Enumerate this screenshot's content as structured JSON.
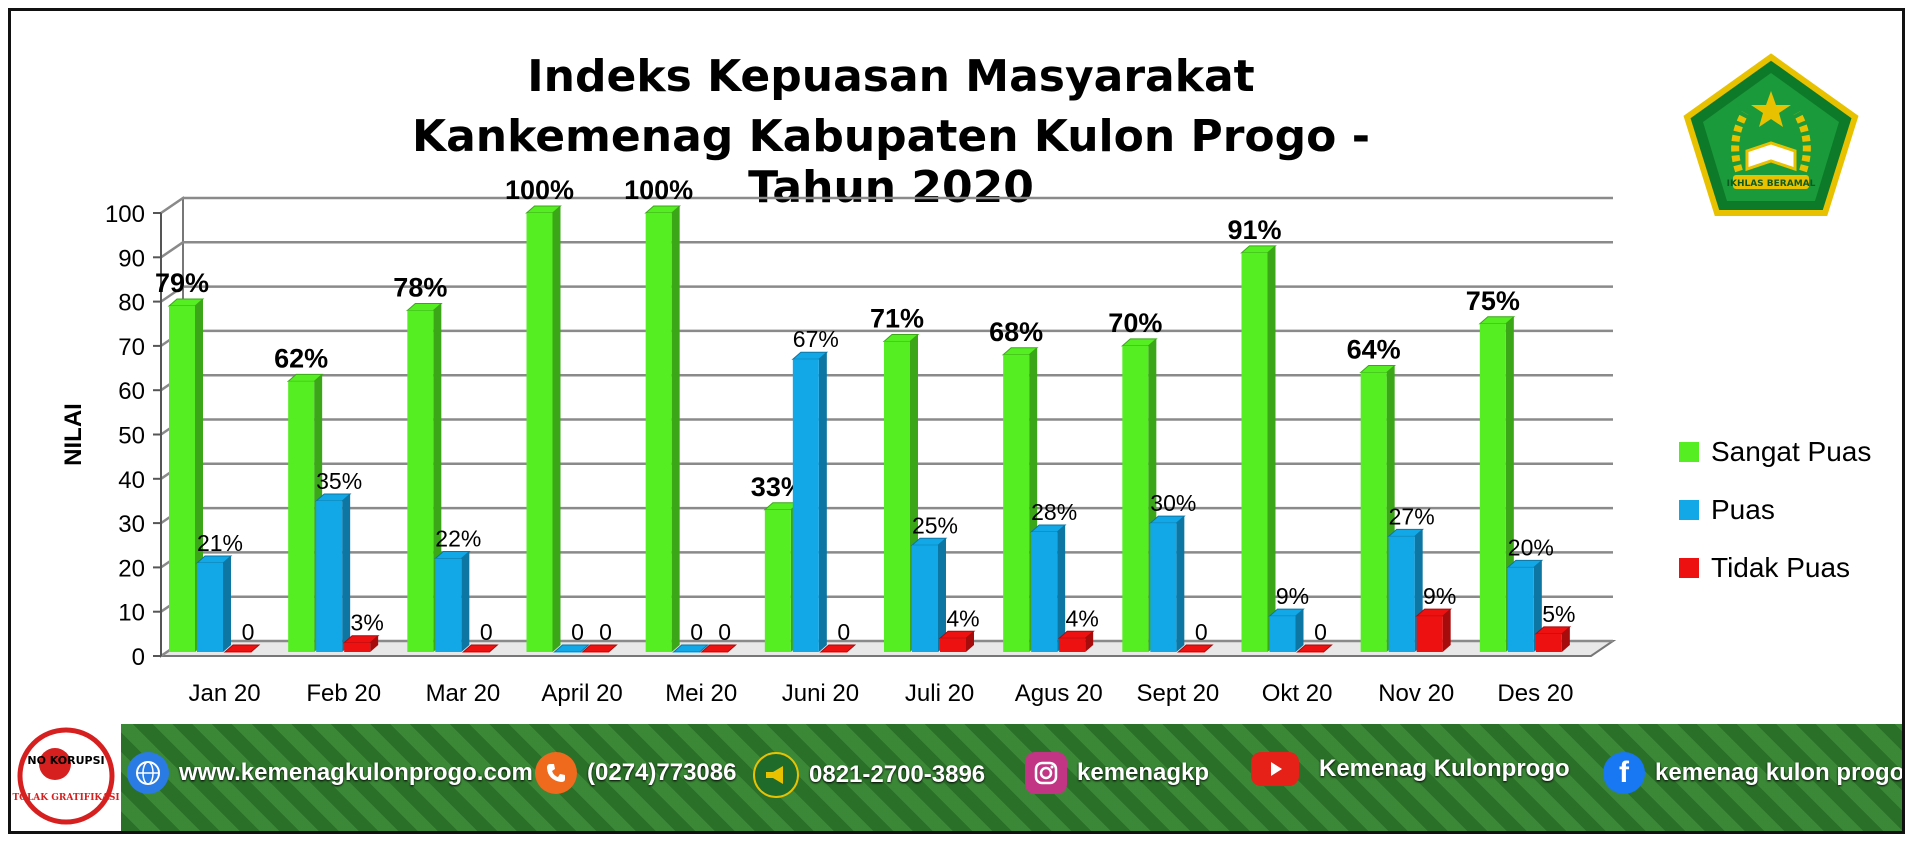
{
  "title_line1": "Indeks Kepuasan Masyarakat",
  "title_line2": "Kankemenag Kabupaten Kulon Progo - Tahun 2020",
  "chart_data": {
    "type": "bar",
    "ylabel": "NILAI",
    "ylim": [
      0,
      100
    ],
    "yticks": [
      "0",
      "10",
      "20",
      "30",
      "40",
      "50",
      "60",
      "70",
      "80",
      "90",
      "100"
    ],
    "categories": [
      "Jan 20",
      "Feb 20",
      "Mar 20",
      "April 20",
      "Mei 20",
      "Juni 20",
      "Juli 20",
      "Agus 20",
      "Sept 20",
      "Okt 20",
      "Nov 20",
      "Des 20"
    ],
    "series": [
      {
        "name": "Sangat Puas",
        "color": "#55ee22",
        "values": [
          79,
          62,
          78,
          100,
          100,
          33,
          71,
          68,
          70,
          91,
          64,
          75
        ],
        "labels": [
          "79%",
          "62%",
          "78%",
          "100%",
          "100%",
          "33%",
          "71%",
          "68%",
          "70%",
          "91%",
          "64%",
          "75%"
        ]
      },
      {
        "name": "Puas",
        "color": "#12a8e8",
        "values": [
          21,
          35,
          22,
          0,
          0,
          67,
          25,
          28,
          30,
          9,
          27,
          20
        ],
        "labels": [
          "21%",
          "35%",
          "22%",
          "0",
          "0",
          "67%",
          "25%",
          "28%",
          "30%",
          "9%",
          "27%",
          "20%"
        ]
      },
      {
        "name": "Tidak Puas",
        "color": "#ee1111",
        "values": [
          0,
          3,
          0,
          0,
          0,
          0,
          4,
          4,
          0,
          0,
          9,
          5
        ],
        "labels": [
          "0",
          "3%",
          "0",
          "0",
          "0",
          "0",
          "4%",
          "4%",
          "0",
          "0",
          "9%",
          "5%"
        ]
      }
    ],
    "grid": true,
    "legend": "right"
  },
  "logo": {
    "icon": "kemenag-emblem-icon",
    "motto": "IKHLAS BERAMAL"
  },
  "footer": {
    "gratifikasi": {
      "icon": "no-korupsi-icon",
      "text1": "NO KORUPSI",
      "text2": "TOLAK GRATIFIKASI"
    },
    "items": [
      {
        "icon": "web-icon",
        "text": "www.kemenagkulonprogo.com",
        "color": "#2a7be4"
      },
      {
        "icon": "phone-icon",
        "text": "(0274)773086",
        "color": "#f06a1d"
      },
      {
        "icon": "megaphone-icon",
        "text": "0821-2700-3896",
        "color": "#1f6b2a"
      },
      {
        "icon": "instagram-icon",
        "text": "kemenagkp",
        "color": "#c13584"
      },
      {
        "icon": "youtube-icon",
        "text": "Kemenag Kulonprogo",
        "color": "#e62117"
      },
      {
        "icon": "facebook-icon",
        "text": "kemenag kulon progo",
        "color": "#1877f2"
      }
    ]
  }
}
